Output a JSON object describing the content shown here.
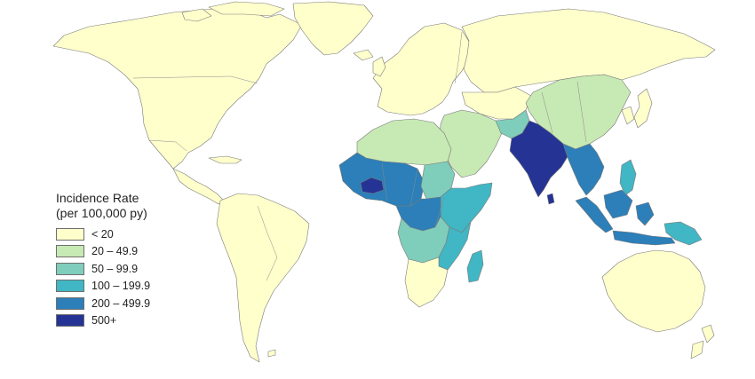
{
  "legend": {
    "title_line1": "Incidence Rate",
    "title_line2": "(per 100,000 py)",
    "items": [
      {
        "label": "< 20",
        "color": "#ffffcc"
      },
      {
        "label": "20 – 49.9",
        "color": "#c7e9b4"
      },
      {
        "label": "50 – 99.9",
        "color": "#7fcdbb"
      },
      {
        "label": "100 – 199.9",
        "color": "#41b6c4"
      },
      {
        "label": "200 – 499.9",
        "color": "#2c7fb8"
      },
      {
        "label": "500+",
        "color": "#253494"
      }
    ]
  },
  "colors": {
    "background": "#ffffff",
    "country_border": "#7a7a7a",
    "no_data": "#ffffff"
  }
}
